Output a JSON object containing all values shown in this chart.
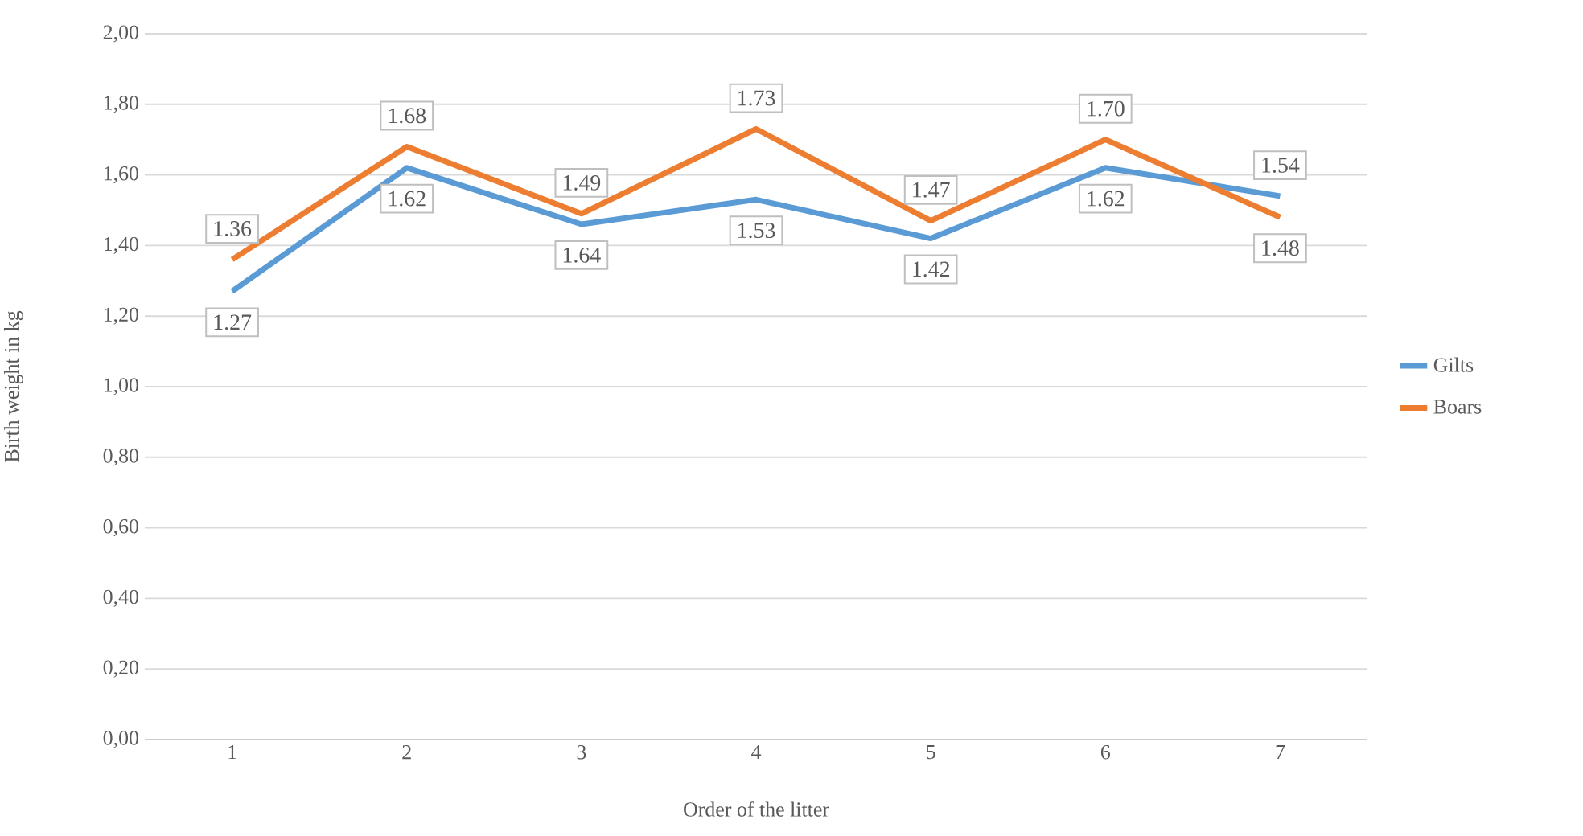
{
  "chart_data": {
    "type": "line",
    "xlabel": "Order of the litter",
    "ylabel": "Birth weight in kg",
    "categories": [
      "1",
      "2",
      "3",
      "4",
      "5",
      "6",
      "7"
    ],
    "series": [
      {
        "name": "Gilts",
        "color": "#5b9bd5",
        "values": [
          1.27,
          1.62,
          1.46,
          1.53,
          1.42,
          1.62,
          1.54
        ],
        "value_labels": [
          "1.27",
          "1.62",
          null,
          "1.53",
          "1.42",
          "1.62",
          "1.54"
        ]
      },
      {
        "name": "Boars",
        "color": "#ed7d31",
        "values": [
          1.36,
          1.68,
          1.49,
          1.73,
          1.47,
          1.7,
          1.48
        ],
        "value_labels": [
          "1.36",
          "1.68",
          "1.49",
          "1.73",
          "1.47",
          "1.70",
          "1.48"
        ]
      }
    ],
    "ylim": [
      0,
      2
    ],
    "yticks": [
      {
        "value": 0,
        "label": "0,00"
      },
      {
        "value": 0.2,
        "label": "0,20"
      },
      {
        "value": 0.4,
        "label": "0,40"
      },
      {
        "value": 0.6,
        "label": "0,60"
      },
      {
        "value": 0.8,
        "label": "0,80"
      },
      {
        "value": 1.0,
        "label": "1,00"
      },
      {
        "value": 1.2,
        "label": "1,20"
      },
      {
        "value": 1.4,
        "label": "1,40"
      },
      {
        "value": 1.6,
        "label": "1,60"
      },
      {
        "value": 1.8,
        "label": "1,80"
      },
      {
        "value": 2.0,
        "label": "2,00"
      }
    ],
    "annotations": [
      {
        "text": "1.64",
        "x": "3",
        "y": 1.46
      }
    ],
    "grid": "y",
    "legend": "right",
    "line_style": "solid",
    "marker": "none"
  }
}
